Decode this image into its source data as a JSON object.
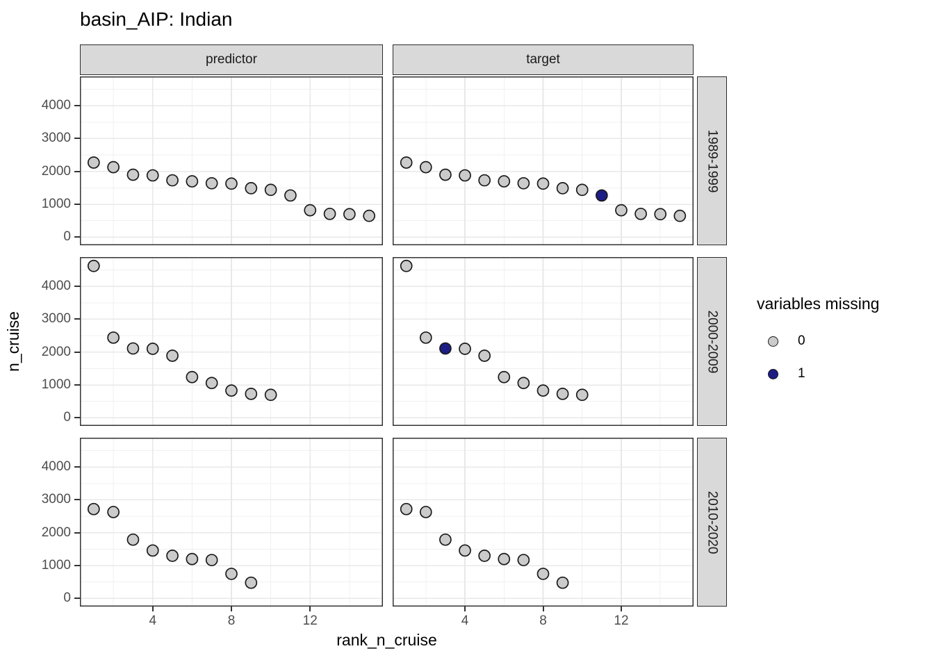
{
  "colors": {
    "background": "#FFFFFF",
    "strip_background": "#D9D9D9",
    "strip_border": "#2B2B2B",
    "panel_border": "#333333",
    "grid_major": "#E8E8E8",
    "grid_minor": "#F0F0F0",
    "axis_text": "#4D4D4D",
    "text": "#000000",
    "point_stroke": "#1A1A1A",
    "point_fill_present": "#CBCBCB",
    "point_fill_missing": "#1D1D85"
  },
  "chart_data": {
    "type": "scatter",
    "title": "basin_AIP: Indian",
    "xlabel": "rank_n_cruise",
    "ylabel": "n_cruise",
    "facet_cols": [
      "predictor",
      "target"
    ],
    "facet_rows": [
      "1989-1999",
      "2000-2009",
      "2010-2020"
    ],
    "x_ticks": [
      4,
      8,
      12
    ],
    "x_minor_ticks": [
      2,
      6,
      10,
      14
    ],
    "y_ticks": [
      0,
      1000,
      2000,
      3000,
      4000
    ],
    "y_minor_ticks": [
      500,
      1500,
      2500,
      3500,
      4500
    ],
    "xlim": [
      0.3,
      15.7
    ],
    "ylim": [
      -245,
      4890
    ],
    "grid": true,
    "legend": {
      "title": "variables missing",
      "position": "right",
      "entries": [
        {
          "value": 0,
          "label": "0",
          "color": "#CBCBCB"
        },
        {
          "value": 1,
          "label": "1",
          "color": "#1D1D85"
        }
      ]
    },
    "panels": [
      {
        "facet_col": "predictor",
        "facet_row": "1989-1999",
        "ranks": [
          1,
          2,
          3,
          4,
          5,
          6,
          7,
          8,
          9,
          10,
          11,
          12,
          13,
          14,
          15
        ],
        "values": [
          2270,
          2130,
          1900,
          1880,
          1730,
          1700,
          1640,
          1630,
          1490,
          1440,
          1270,
          820,
          710,
          700,
          650
        ],
        "missing_ranks": []
      },
      {
        "facet_col": "target",
        "facet_row": "1989-1999",
        "ranks": [
          1,
          2,
          3,
          4,
          5,
          6,
          7,
          8,
          9,
          10,
          11,
          12,
          13,
          14,
          15
        ],
        "values": [
          2270,
          2130,
          1900,
          1880,
          1730,
          1700,
          1640,
          1630,
          1490,
          1440,
          1270,
          820,
          710,
          700,
          650
        ],
        "missing_ranks": [
          11
        ]
      },
      {
        "facet_col": "predictor",
        "facet_row": "2000-2009",
        "ranks": [
          1,
          2,
          3,
          4,
          5,
          6,
          7,
          8,
          9,
          10
        ],
        "values": [
          4620,
          2440,
          2110,
          2100,
          1890,
          1240,
          1060,
          830,
          730,
          700
        ],
        "missing_ranks": []
      },
      {
        "facet_col": "target",
        "facet_row": "2000-2009",
        "ranks": [
          1,
          2,
          3,
          4,
          5,
          6,
          7,
          8,
          9,
          10
        ],
        "values": [
          4620,
          2440,
          2110,
          2100,
          1890,
          1240,
          1060,
          830,
          730,
          700
        ],
        "missing_ranks": [
          3
        ]
      },
      {
        "facet_col": "predictor",
        "facet_row": "2010-2020",
        "ranks": [
          1,
          2,
          3,
          4,
          5,
          6,
          7,
          8,
          9
        ],
        "values": [
          2720,
          2630,
          1790,
          1460,
          1300,
          1200,
          1170,
          750,
          480
        ],
        "missing_ranks": []
      },
      {
        "facet_col": "target",
        "facet_row": "2010-2020",
        "ranks": [
          1,
          2,
          3,
          4,
          5,
          6,
          7,
          8,
          9
        ],
        "values": [
          2720,
          2630,
          1790,
          1460,
          1300,
          1200,
          1170,
          750,
          480
        ],
        "missing_ranks": []
      }
    ]
  }
}
